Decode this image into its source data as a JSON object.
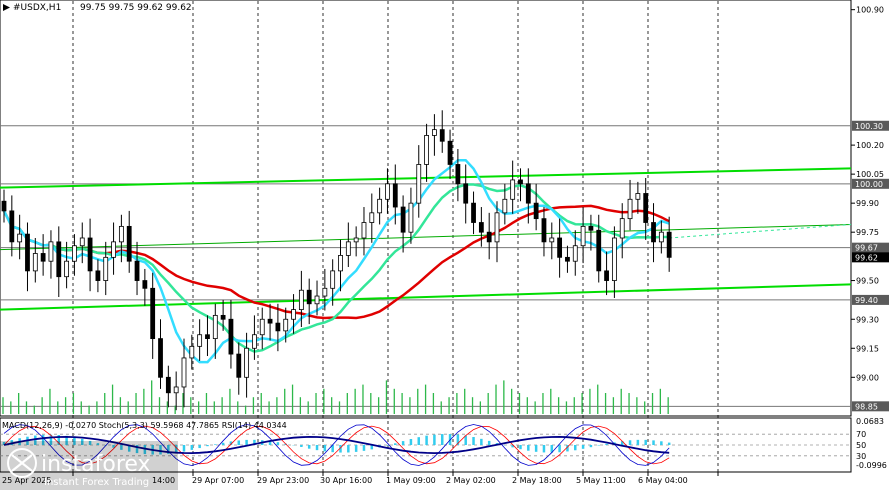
{
  "header": {
    "symbol": "#USDX,H1",
    "ohlc": "99.75 99.75 99.62 99.62"
  },
  "price_axis": {
    "ticks": [
      "100.90",
      "100.20",
      "100.05",
      "99.90",
      "99.75",
      "99.50",
      "99.30",
      "99.15",
      "99.00"
    ],
    "boxed_levels": [
      {
        "label": "100.30",
        "color": "#5a5a5a"
      },
      {
        "label": "100.00",
        "color": "#5a5a5a"
      },
      {
        "label": "99.67",
        "color": "#5a5a5a"
      },
      {
        "label": "99.62",
        "color": "#000000"
      },
      {
        "label": "99.40",
        "color": "#5a5a5a"
      },
      {
        "label": "98.85",
        "color": "#5a5a5a"
      }
    ]
  },
  "time_axis": {
    "labels": [
      "25 Apr 2025",
      "14:00",
      "29 Apr 07:00",
      "29 Apr 23:00",
      "30 Apr 16:00",
      "1 May 09:00",
      "2 May 02:00",
      "2 May 18:00",
      "5 May 11:00",
      "6 May 04:00"
    ]
  },
  "indicator": {
    "label": "MACD(12,26,9) -0.0270  Stoch(5,3,3) 59.5968 47.7865  RSI(14) 44.0344",
    "scale_ticks": [
      "0.0683",
      "70",
      "50",
      "30",
      "-0.0996"
    ],
    "levels_text": [
      "50",
      "00"
    ]
  },
  "logo": {
    "name": "instaforex",
    "tagline": "Instant Forex Trading"
  },
  "colors": {
    "channel": "#00dd00",
    "ma_red": "#e00000",
    "ma_cyan": "#33ddff",
    "ma_green": "#33e699",
    "candles": "#000000",
    "volume": "#2db84a",
    "macd": "#33ccee",
    "stoch_main": "#0000cc",
    "stoch_signal": "#ff0000",
    "rsi": "#000088"
  },
  "chart_data": {
    "type": "candlestick",
    "symbol": "#USDX",
    "timeframe": "H1",
    "ylim": [
      98.8,
      100.95
    ],
    "price_series": [
      99.86,
      99.7,
      99.74,
      99.55,
      99.64,
      99.6,
      99.7,
      99.52,
      99.6,
      99.68,
      99.72,
      99.55,
      99.5,
      99.62,
      99.7,
      99.78,
      99.6,
      99.5,
      99.46,
      99.2,
      99.0,
      98.92,
      98.95,
      99.1,
      99.16,
      99.22,
      99.2,
      99.32,
      99.3,
      99.12,
      99.0,
      99.15,
      99.22,
      99.3,
      99.28,
      99.24,
      99.3,
      99.35,
      99.45,
      99.38,
      99.42,
      99.46,
      99.55,
      99.63,
      99.7,
      99.72,
      99.8,
      99.85,
      99.92,
      100.0,
      99.88,
      99.75,
      99.9,
      100.1,
      100.25,
      100.28,
      100.22,
      100.1,
      100.0,
      99.9,
      99.8,
      99.75,
      99.7,
      99.85,
      99.92,
      100.02,
      100.0,
      99.9,
      99.82,
      99.7,
      99.72,
      99.62,
      99.6,
      99.68,
      99.78,
      99.76,
      99.55,
      99.5,
      99.72,
      99.82,
      99.92,
      99.95,
      99.8,
      99.7,
      99.75,
      99.62
    ],
    "volume": [
      4,
      3,
      5,
      3,
      2,
      4,
      6,
      3,
      4,
      5,
      3,
      2,
      3,
      5,
      7,
      4,
      3,
      5,
      6,
      8,
      4,
      3,
      2,
      5,
      4,
      3,
      5,
      3,
      4,
      6,
      3,
      2,
      4,
      5,
      3,
      4,
      6,
      7,
      4,
      3,
      5,
      6,
      4,
      3,
      5,
      6,
      7,
      5,
      4,
      8,
      6,
      5,
      4,
      6,
      7,
      5,
      3,
      4,
      5,
      6,
      4,
      3,
      5,
      7,
      8,
      6,
      5,
      4,
      3,
      5,
      6,
      4,
      3,
      4,
      5,
      6,
      7,
      5,
      4,
      6,
      5,
      4,
      3,
      5,
      6,
      4
    ],
    "channel_upper": {
      "start": 99.98,
      "end": 100.08
    },
    "channel_lower": {
      "start": 99.35,
      "end": 99.48
    },
    "boxed_levels": [
      100.3,
      100.0,
      99.67,
      99.62,
      99.4,
      98.85
    ],
    "indicators": {
      "macd": -0.027,
      "stoch_main": 59.5968,
      "stoch_signal": 47.7865,
      "rsi": 44.0344,
      "osc_range": [
        -0.0996,
        0.0683
      ],
      "osc_levels": [
        70,
        50,
        30
      ]
    }
  }
}
